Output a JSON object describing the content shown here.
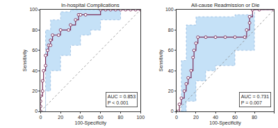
{
  "chart_data": [
    {
      "type": "line",
      "title": "In-hospital Complications",
      "x_label": "100-Specificity",
      "y_label": "Sensitivity",
      "x": [
        0,
        0,
        0,
        0,
        2,
        2,
        3,
        5,
        5,
        7,
        8,
        10,
        10,
        12,
        18,
        20,
        28,
        30,
        35,
        38,
        40,
        45,
        60,
        65,
        70,
        75,
        80,
        85,
        90,
        95,
        100
      ],
      "values": [
        0,
        5,
        10,
        15,
        20,
        30,
        40,
        45,
        55,
        60,
        65,
        65,
        70,
        75,
        75,
        80,
        80,
        85,
        90,
        95,
        95,
        95,
        100,
        100,
        100,
        100,
        100,
        100,
        100,
        100,
        100
      ],
      "color": "#7b2d5a",
      "marker": "circle",
      "line_style": "solid",
      "ci_x": [
        0,
        5,
        10,
        20,
        30,
        40,
        50,
        60,
        80,
        100
      ],
      "ci_upper": [
        0,
        80,
        90,
        98,
        100,
        100,
        100,
        100,
        100,
        100
      ],
      "ci_lower": [
        0,
        0,
        20,
        40,
        55,
        65,
        75,
        80,
        90,
        100
      ],
      "annotations": [
        "AUC = 0.853",
        "P < 0.001"
      ],
      "xlim": [
        0,
        100
      ],
      "ylim": [
        0,
        100
      ],
      "xticks": [
        0,
        20,
        40,
        60,
        80,
        100
      ],
      "yticks": [
        0,
        20,
        40,
        60,
        80,
        100
      ],
      "grid": false
    },
    {
      "type": "line",
      "title": "All-cause Readmission or Die",
      "x_label": "100-Specificity",
      "y_label": "Sensitivity",
      "x": [
        0,
        2,
        3,
        5,
        8,
        10,
        12,
        15,
        17,
        18,
        20,
        22,
        30,
        40,
        50,
        60,
        70,
        72,
        75,
        75,
        78,
        85,
        100
      ],
      "values": [
        0,
        0,
        7,
        13,
        20,
        27,
        33,
        40,
        53,
        60,
        67,
        73,
        73,
        73,
        73,
        73,
        73,
        80,
        87,
        93,
        100,
        100,
        100
      ],
      "color": "#7b2d5a",
      "marker": "circle",
      "line_style": "solid",
      "ci_x": [
        0,
        5,
        10,
        20,
        30,
        40,
        60,
        80,
        100
      ],
      "ci_upper": [
        0,
        50,
        85,
        93,
        93,
        93,
        95,
        100,
        100
      ],
      "ci_lower": [
        0,
        0,
        0,
        10,
        30,
        40,
        45,
        60,
        100
      ],
      "annotations": [
        "AUC = 0.731",
        "P = 0.007"
      ],
      "xlim": [
        0,
        100
      ],
      "ylim": [
        0,
        100
      ],
      "xticks": [
        0,
        20,
        40,
        60,
        80,
        100
      ],
      "yticks": [
        0,
        20,
        40,
        60,
        80,
        100
      ],
      "grid": false
    }
  ]
}
